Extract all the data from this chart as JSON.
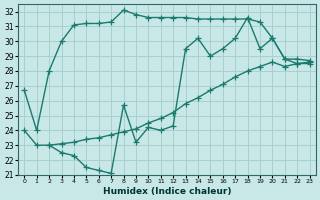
{
  "title": "",
  "xlabel": "Humidex (Indice chaleur)",
  "ylabel": "",
  "bg_color": "#c8e8e8",
  "grid_color": "#aacfcf",
  "line_color": "#1a7a6e",
  "xlim": [
    -0.5,
    23.5
  ],
  "ylim": [
    21,
    32.5
  ],
  "xticks": [
    0,
    1,
    2,
    3,
    4,
    5,
    6,
    7,
    8,
    9,
    10,
    11,
    12,
    13,
    14,
    15,
    16,
    17,
    18,
    19,
    20,
    21,
    22,
    23
  ],
  "yticks": [
    21,
    22,
    23,
    24,
    25,
    26,
    27,
    28,
    29,
    30,
    31,
    32
  ],
  "curve1_x": [
    0,
    1,
    2,
    3,
    4,
    5,
    6,
    7,
    8,
    9,
    10,
    11,
    12,
    13,
    14,
    15,
    16,
    17,
    18,
    19,
    20,
    21,
    22,
    23
  ],
  "curve1_y": [
    26.7,
    24.0,
    28.0,
    30.0,
    31.1,
    31.2,
    31.2,
    31.3,
    32.1,
    31.8,
    31.6,
    31.6,
    31.6,
    31.6,
    31.5,
    31.5,
    31.5,
    31.5,
    31.5,
    31.3,
    30.2,
    28.8,
    28.8,
    28.7
  ],
  "curve2_x": [
    0,
    1,
    2,
    3,
    4,
    5,
    6,
    7,
    8,
    9,
    10,
    11,
    12,
    13,
    14,
    15,
    16,
    17,
    18,
    19,
    20,
    21,
    22,
    23
  ],
  "curve2_y": [
    24.0,
    23.0,
    23.0,
    22.5,
    22.3,
    21.5,
    21.3,
    21.1,
    25.7,
    23.2,
    24.2,
    24.0,
    24.3,
    29.5,
    30.2,
    29.0,
    29.5,
    30.2,
    31.6,
    29.5,
    30.2,
    28.8,
    28.5,
    28.5
  ],
  "curve3_x": [
    2,
    3,
    4,
    5,
    6,
    7,
    8,
    9,
    10,
    11,
    12,
    13,
    14,
    15,
    16,
    17,
    18,
    19,
    20,
    21,
    22,
    23
  ],
  "curve3_y": [
    23.0,
    23.1,
    23.2,
    23.4,
    23.5,
    23.7,
    23.9,
    24.1,
    24.5,
    24.8,
    25.2,
    25.8,
    26.2,
    26.7,
    27.1,
    27.6,
    28.0,
    28.3,
    28.6,
    28.3,
    28.5,
    28.6
  ]
}
